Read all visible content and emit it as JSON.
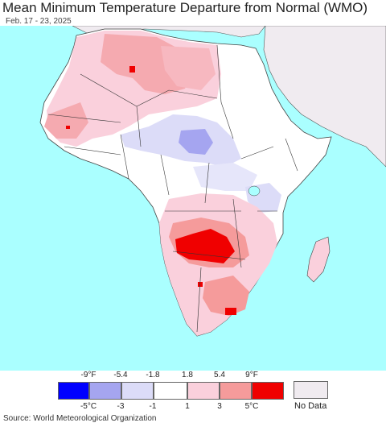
{
  "header": {
    "title": "Mean Minimum Temperature Departure from Normal (WMO)",
    "date_range": "Feb. 17 - 23, 2025"
  },
  "legend": {
    "fahrenheit_ticks": [
      "-9°F",
      "-5.4",
      "-1.8",
      "1.8",
      "5.4",
      "9°F"
    ],
    "celsius_ticks": [
      "-5°C",
      "-3",
      "-1",
      "1",
      "3",
      "5°C"
    ],
    "colors": [
      "#0000ff",
      "#a5a5f0",
      "#dcdcf8",
      "#ffffff",
      "#fad0dc",
      "#f59b9b",
      "#f00000"
    ],
    "no_data_label": "No Data",
    "no_data_color": "#f0ebf0"
  },
  "map": {
    "ocean_color": "#aaffff",
    "land_neutral": "#ffffff"
  },
  "footer": {
    "source": "Source: World Meteorological Organization"
  }
}
